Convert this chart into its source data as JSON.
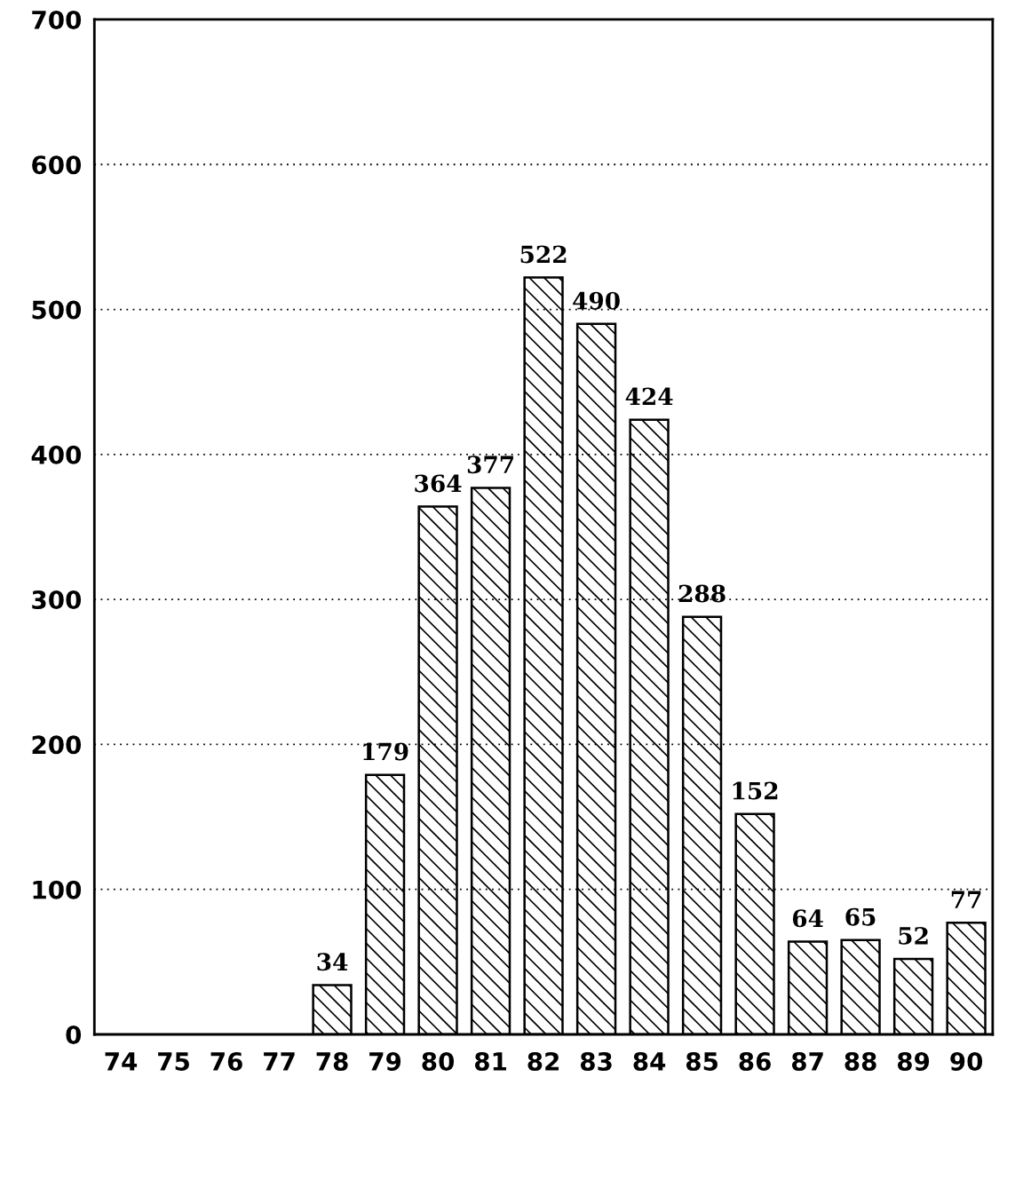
{
  "chart_data": {
    "type": "bar",
    "categories": [
      "74",
      "75",
      "76",
      "77",
      "78",
      "79",
      "80",
      "81",
      "82",
      "83",
      "84",
      "85",
      "86",
      "87",
      "88",
      "89",
      "90"
    ],
    "values": [
      null,
      null,
      null,
      null,
      34,
      179,
      364,
      377,
      522,
      490,
      424,
      288,
      152,
      64,
      65,
      52,
      77
    ],
    "color": "#000000",
    "ylim": [
      0,
      700
    ],
    "yticks": [
      0,
      100,
      200,
      300,
      400,
      500,
      600,
      700
    ],
    "grid": "y",
    "data_labels": true
  }
}
